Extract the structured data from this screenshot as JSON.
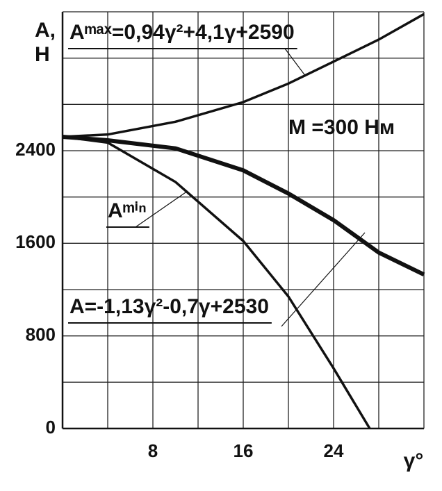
{
  "chart_data": {
    "type": "line",
    "y_label": [
      "A,",
      "Н"
    ],
    "x_label": "γ°",
    "annotations": [
      "Aᵐᵃˣ=0,94γ²+4,1γ+2590",
      "M =300 Нм",
      "Aᵐⁱⁿ",
      "A=-1,13γ²-0,7γ+2530"
    ],
    "series": [
      {
        "color": "#111111",
        "x": [
          0,
          4,
          10,
          16,
          20,
          24,
          28,
          32
        ],
        "values": [
          2520,
          2540,
          2650,
          2820,
          2980,
          3170,
          3360,
          3580
        ]
      },
      {
        "color": "#111111",
        "x": [
          0,
          4,
          10,
          16,
          20,
          24,
          28,
          32
        ],
        "values": [
          2520,
          2490,
          2420,
          2230,
          2030,
          1800,
          1520,
          1330
        ]
      },
      {
        "color": "#111111",
        "x": [
          0,
          4,
          10,
          16,
          20,
          24,
          27.2
        ],
        "values": [
          2520,
          2470,
          2130,
          1620,
          1140,
          520,
          0
        ]
      }
    ],
    "xlim": [
      0,
      32
    ],
    "xticks": [
      8,
      16,
      24
    ],
    "xminor": [
      4,
      12,
      20,
      28
    ],
    "ylim": [
      0,
      3600
    ],
    "yticks": [
      0,
      800,
      1600,
      2400
    ],
    "yminor": [
      400,
      1200,
      2000,
      2800,
      3200
    ],
    "grid": true
  }
}
